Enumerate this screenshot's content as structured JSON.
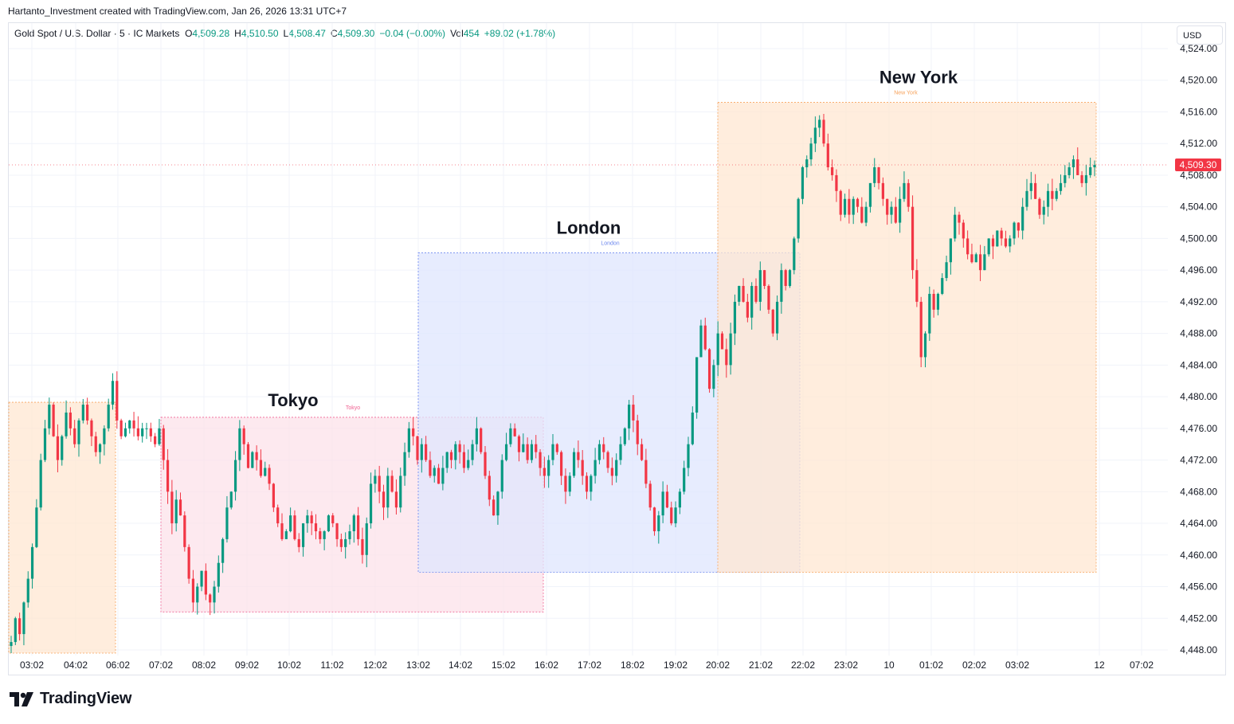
{
  "credit": "Hartanto_Investment created with TradingView.com, Jan 26, 2026 13:31 UTC+7",
  "legend": {
    "symbol": "Gold Spot / U.S. Dollar · 5 · IC Markets",
    "o_label": "O",
    "o": "4,509.28",
    "h_label": "H",
    "h": "4,510.50",
    "l_label": "L",
    "l": "4,508.47",
    "c_label": "C",
    "c": "4,509.30",
    "change": "−0.04 (−0.00%)",
    "vol_label": "Vol",
    "vol": "454",
    "vol_change": "+89.02 (+1.78%)"
  },
  "currency": "USD",
  "brand": "TradingView",
  "colors": {
    "up": "#089981",
    "down": "#f23645",
    "grid": "#f0f3fa"
  },
  "chart_data": {
    "type": "candlestick",
    "y_ticks": [
      "4,448.00",
      "4,452.00",
      "4,456.00",
      "4,460.00",
      "4,464.00",
      "4,468.00",
      "4,472.00",
      "4,476.00",
      "4,480.00",
      "4,484.00",
      "4,488.00",
      "4,492.00",
      "4,496.00",
      "4,500.00",
      "4,504.00",
      "4,508.00",
      "4,512.00",
      "4,516.00",
      "4,520.00",
      "4,524.00"
    ],
    "ylim": [
      4446.0,
      4527.0
    ],
    "x_ticks": [
      "03:02",
      "04:02",
      "06:02",
      "07:02",
      "08:02",
      "09:02",
      "10:02",
      "11:02",
      "12:02",
      "13:02",
      "14:02",
      "15:02",
      "16:02",
      "17:02",
      "18:02",
      "19:02",
      "20:02",
      "21:02",
      "22:02",
      "23:02",
      "10",
      "01:02",
      "02:02",
      "03:02",
      "12",
      "07:02"
    ],
    "last_price": "4,509.30",
    "sessions": [
      {
        "name": "",
        "start": "02:50",
        "end": "05:30",
        "high": 4479.3,
        "low": 4446.0,
        "fill": "#ffe7d1",
        "stroke": "#f7a35c"
      },
      {
        "name": "Tokyo",
        "small_label": "Tokyo",
        "start": "07:02",
        "end": "15:55",
        "high": 4477.4,
        "low": 4452.8,
        "fill": "#fce2ea",
        "stroke": "#f06292"
      },
      {
        "name": "London",
        "small_label": "London",
        "start": "13:00",
        "end": "21:55",
        "high": 4498.2,
        "low": 4457.8,
        "fill": "#dfe6fd",
        "stroke": "#6b86ee"
      },
      {
        "name": "New York",
        "small_label": "New York",
        "start": "20:00",
        "end": "04:55",
        "high": 4517.2,
        "low": 4457.8,
        "fill": "#ffe7d1",
        "stroke": "#f7a35c"
      }
    ],
    "series": [
      {
        "close": [
          4449,
          4452,
          4450,
          4454,
          4457,
          4461,
          4466,
          4472,
          4476,
          4479,
          4475,
          4472,
          4475,
          4478,
          4476,
          4474,
          4477,
          4479,
          4477,
          4475,
          4473,
          4474,
          4476,
          4479,
          4482,
          4477,
          4475,
          4476,
          4477,
          4476,
          4475,
          4476,
          4476,
          4475,
          4474,
          4476,
          4472,
          4468,
          4464,
          4467,
          4465,
          4461,
          4457,
          4454,
          4456,
          4458,
          4455,
          4454,
          4456,
          4459,
          4462,
          4466,
          4468,
          4472,
          4476,
          4474,
          4471,
          4473,
          4472,
          4470,
          4471,
          4469,
          4466,
          4464,
          4462,
          4463,
          4465,
          4462,
          4461,
          4464,
          4465,
          4464,
          4463,
          4462,
          4463,
          4465,
          4464,
          4462,
          4461,
          4462,
          4463,
          4465,
          4462,
          4460,
          4464,
          4469,
          4470,
          4468,
          4466,
          4470,
          4468,
          4466,
          4470,
          4473,
          4476,
          4475,
          4472,
          4474,
          4472,
          4470,
          4471,
          4469,
          4471,
          4473,
          4472,
          4474,
          4473,
          4471,
          4472,
          4474,
          4476,
          4473,
          4470,
          4467,
          4465,
          4468,
          4472,
          4474,
          4476,
          4475,
          4473,
          4474,
          4472,
          4474,
          4473,
          4471,
          4470,
          4472,
          4474,
          4473,
          4470,
          4468,
          4470,
          4473,
          4472,
          4470,
          4468,
          4470,
          4472,
          4474,
          4473,
          4471,
          4470,
          4472,
          4474,
          4476,
          4479,
          4477,
          4474,
          4472,
          4469,
          4466,
          4463,
          4465,
          4468,
          4466,
          4464,
          4466,
          4468,
          4471,
          4474,
          4478,
          4485,
          4489,
          4486,
          4481,
          4484,
          4488,
          4486,
          4484,
          4488,
          4492,
          4494,
          4492,
          4490,
          4494,
          4492,
          4496,
          4494,
          4491,
          4488,
          4492,
          4496,
          4494,
          4496,
          4500,
          4505,
          4509,
          4510,
          4512,
          4514,
          4515,
          4512,
          4509,
          4508,
          4506,
          4503,
          4505,
          4503,
          4505,
          4504,
          4502,
          4504,
          4507,
          4509,
          4507,
          4505,
          4503,
          4504,
          4502,
          4505,
          4507,
          4504,
          4496,
          4492,
          4485,
          4488,
          4493,
          4491,
          4493,
          4495,
          4497,
          4500,
          4503,
          4502,
          4500,
          4498,
          4497,
          4498,
          4496,
          4498,
          4500,
          4499,
          4501,
          4500,
          4499,
          4500,
          4502,
          4501,
          4504,
          4506,
          4507,
          4505,
          4503,
          4504,
          4506,
          4505,
          4506,
          4507,
          4508,
          4509,
          4510,
          4508,
          4507,
          4508,
          4509,
          4509.3
        ]
      }
    ]
  }
}
